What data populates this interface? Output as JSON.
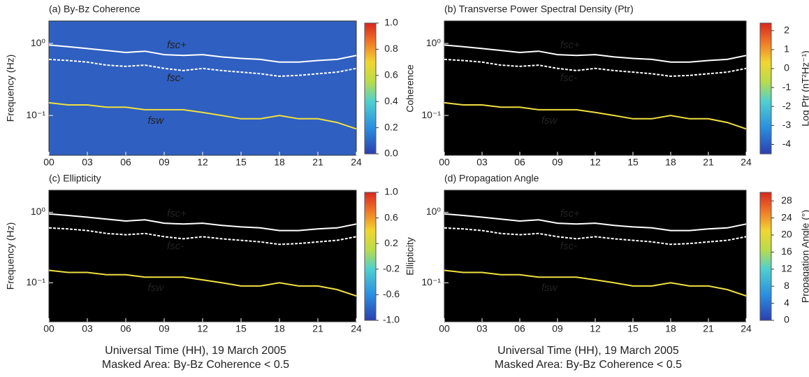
{
  "chart_data": [
    {
      "type": "spectrogram",
      "title": "(a) By-Bz Coherence",
      "ylabel": "Frequency  (Hz)",
      "plot_background": "#2f5fc0",
      "colormap": "jet",
      "xlim": [
        0,
        24
      ],
      "xticks": [
        {
          "value": 0,
          "label": "00"
        },
        {
          "value": 3,
          "label": "03"
        },
        {
          "value": 6,
          "label": "06"
        },
        {
          "value": 9,
          "label": "09"
        },
        12,
        15,
        18,
        21,
        24
      ],
      "ylim": [
        0.028,
        2.05
      ],
      "log_y": true,
      "yticks": [
        {
          "value": 0.1,
          "label": "10⁻¹"
        },
        {
          "value": 1,
          "label": "10⁰"
        }
      ],
      "colorbar_label": "Coherence",
      "clim": [
        0,
        1
      ],
      "cticks": [
        {
          "value": 0,
          "label": "0.0"
        },
        0.2,
        0.4,
        0.6,
        0.8,
        {
          "value": 1,
          "label": "1.0"
        }
      ],
      "x": [
        0,
        1.5,
        3,
        4.5,
        6,
        7.5,
        9,
        10.5,
        12,
        13.5,
        15,
        16.5,
        18,
        19.5,
        21,
        22.5,
        24
      ],
      "series": [
        {
          "name": "fsc+",
          "color": "#ffffff",
          "values": [
            0.95,
            0.9,
            0.85,
            0.8,
            0.75,
            0.78,
            0.7,
            0.68,
            0.7,
            0.65,
            0.62,
            0.6,
            0.55,
            0.55,
            0.58,
            0.6,
            0.68
          ]
        },
        {
          "name": "fsc-",
          "color": "#ffffff",
          "values": [
            0.6,
            0.58,
            0.55,
            0.5,
            0.48,
            0.5,
            0.45,
            0.42,
            0.45,
            0.42,
            0.4,
            0.38,
            0.35,
            0.36,
            0.38,
            0.4,
            0.45
          ]
        },
        {
          "name": "fsw",
          "color": "#f0e040",
          "values": [
            0.15,
            0.14,
            0.14,
            0.13,
            0.13,
            0.12,
            0.12,
            0.12,
            0.11,
            0.1,
            0.09,
            0.09,
            0.1,
            0.09,
            0.09,
            0.08,
            0.065
          ]
        }
      ]
    },
    {
      "type": "spectrogram",
      "title": "(b) Transverse Power Spectral Density (Ptr)",
      "plot_background": "#000000",
      "colormap": "jet",
      "xlim": [
        0,
        24
      ],
      "xticks": [
        {
          "value": 0,
          "label": "00"
        },
        {
          "value": 3,
          "label": "03"
        },
        {
          "value": 6,
          "label": "06"
        },
        {
          "value": 9,
          "label": "09"
        },
        12,
        15,
        18,
        21,
        24
      ],
      "ylim": [
        0.028,
        2.05
      ],
      "log_y": true,
      "yticks": [
        {
          "value": 0.1,
          "label": "10⁻¹"
        },
        {
          "value": 1,
          "label": "10⁰"
        }
      ],
      "colorbar_label": "Log Ptr  (nT²Hz⁻¹)",
      "clim": [
        -4.5,
        2.4
      ],
      "cticks": [
        -4,
        -3,
        -2,
        -1,
        0,
        1,
        2
      ],
      "x": [
        0,
        1.5,
        3,
        4.5,
        6,
        7.5,
        9,
        10.5,
        12,
        13.5,
        15,
        16.5,
        18,
        19.5,
        21,
        22.5,
        24
      ],
      "series": [
        {
          "name": "fsc+",
          "color": "#ffffff",
          "values": [
            0.95,
            0.9,
            0.85,
            0.8,
            0.75,
            0.78,
            0.7,
            0.68,
            0.7,
            0.65,
            0.62,
            0.6,
            0.55,
            0.55,
            0.58,
            0.6,
            0.68
          ]
        },
        {
          "name": "fsc-",
          "color": "#ffffff",
          "values": [
            0.6,
            0.58,
            0.55,
            0.5,
            0.48,
            0.5,
            0.45,
            0.42,
            0.45,
            0.42,
            0.4,
            0.38,
            0.35,
            0.36,
            0.38,
            0.4,
            0.45
          ]
        },
        {
          "name": "fsw",
          "color": "#f0e040",
          "values": [
            0.15,
            0.14,
            0.14,
            0.13,
            0.13,
            0.12,
            0.12,
            0.12,
            0.11,
            0.1,
            0.09,
            0.09,
            0.1,
            0.09,
            0.09,
            0.08,
            0.065
          ]
        }
      ]
    },
    {
      "type": "spectrogram",
      "title": "(c) Ellipticity",
      "ylabel": "Frequency  (Hz)",
      "xlabel": "Universal Time (HH), 19 March 2005",
      "note": "Masked Area: By-Bz Coherence < 0.5",
      "plot_background": "#000000",
      "colormap": "jet",
      "xlim": [
        0,
        24
      ],
      "xticks": [
        {
          "value": 0,
          "label": "00"
        },
        {
          "value": 3,
          "label": "03"
        },
        {
          "value": 6,
          "label": "06"
        },
        {
          "value": 9,
          "label": "09"
        },
        12,
        15,
        18,
        21,
        24
      ],
      "ylim": [
        0.028,
        2.05
      ],
      "log_y": true,
      "yticks": [
        {
          "value": 0.1,
          "label": "10⁻¹"
        },
        {
          "value": 1,
          "label": "10⁰"
        }
      ],
      "colorbar_label": "Ellipticity",
      "clim": [
        -1,
        1
      ],
      "cticks": [
        {
          "value": -1,
          "label": "-1.0"
        },
        -0.6,
        -0.2,
        0.2,
        0.6,
        {
          "value": 1,
          "label": "1.0"
        }
      ],
      "x": [
        0,
        1.5,
        3,
        4.5,
        6,
        7.5,
        9,
        10.5,
        12,
        13.5,
        15,
        16.5,
        18,
        19.5,
        21,
        22.5,
        24
      ],
      "series": [
        {
          "name": "fsc+",
          "color": "#ffffff",
          "values": [
            0.95,
            0.9,
            0.85,
            0.8,
            0.75,
            0.78,
            0.7,
            0.68,
            0.7,
            0.65,
            0.62,
            0.6,
            0.55,
            0.55,
            0.58,
            0.6,
            0.68
          ]
        },
        {
          "name": "fsc-",
          "color": "#ffffff",
          "values": [
            0.6,
            0.58,
            0.55,
            0.5,
            0.48,
            0.5,
            0.45,
            0.42,
            0.45,
            0.42,
            0.4,
            0.38,
            0.35,
            0.36,
            0.38,
            0.4,
            0.45
          ]
        },
        {
          "name": "fsw",
          "color": "#f0e040",
          "values": [
            0.15,
            0.14,
            0.14,
            0.13,
            0.13,
            0.12,
            0.12,
            0.12,
            0.11,
            0.1,
            0.09,
            0.09,
            0.1,
            0.09,
            0.09,
            0.08,
            0.065
          ]
        }
      ]
    },
    {
      "type": "spectrogram",
      "title": "(d) Propagation Angle",
      "xlabel": "Universal Time (HH), 19 March 2005",
      "note": "Masked Area: By-Bz Coherence < 0.5",
      "plot_background": "#000000",
      "colormap": "jet",
      "xlim": [
        0,
        24
      ],
      "xticks": [
        {
          "value": 0,
          "label": "00"
        },
        {
          "value": 3,
          "label": "03"
        },
        {
          "value": 6,
          "label": "06"
        },
        {
          "value": 9,
          "label": "09"
        },
        12,
        15,
        18,
        21,
        24
      ],
      "ylim": [
        0.028,
        2.05
      ],
      "log_y": true,
      "yticks": [
        {
          "value": 0.1,
          "label": "10⁻¹"
        },
        {
          "value": 1,
          "label": "10⁰"
        }
      ],
      "colorbar_label": "Propagation Angle  (°)",
      "clim": [
        0,
        30
      ],
      "cticks": [
        0,
        4,
        8,
        12,
        16,
        20,
        24,
        28
      ],
      "x": [
        0,
        1.5,
        3,
        4.5,
        6,
        7.5,
        9,
        10.5,
        12,
        13.5,
        15,
        16.5,
        18,
        19.5,
        21,
        22.5,
        24
      ],
      "series": [
        {
          "name": "fsc+",
          "color": "#ffffff",
          "values": [
            0.95,
            0.9,
            0.85,
            0.8,
            0.75,
            0.78,
            0.7,
            0.68,
            0.7,
            0.65,
            0.62,
            0.6,
            0.55,
            0.55,
            0.58,
            0.6,
            0.68
          ]
        },
        {
          "name": "fsc-",
          "color": "#ffffff",
          "values": [
            0.6,
            0.58,
            0.55,
            0.5,
            0.48,
            0.5,
            0.45,
            0.42,
            0.45,
            0.42,
            0.4,
            0.38,
            0.35,
            0.36,
            0.38,
            0.4,
            0.45
          ]
        },
        {
          "name": "fsw",
          "color": "#f0e040",
          "values": [
            0.15,
            0.14,
            0.14,
            0.13,
            0.13,
            0.12,
            0.12,
            0.12,
            0.11,
            0.1,
            0.09,
            0.09,
            0.1,
            0.09,
            0.09,
            0.08,
            0.065
          ]
        }
      ]
    }
  ]
}
